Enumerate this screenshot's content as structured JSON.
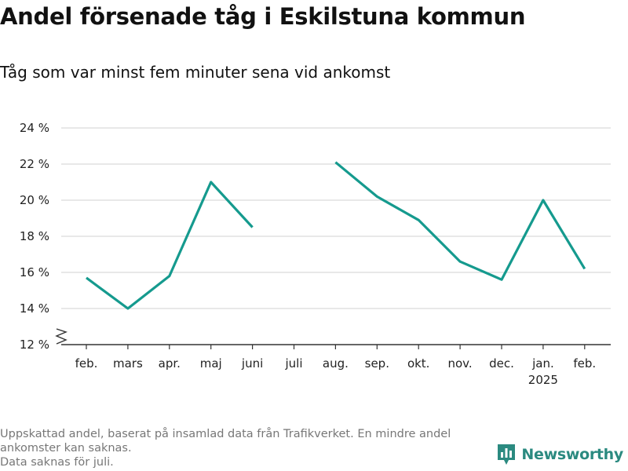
{
  "title": "Andel försenade tåg i Eskilstuna kommun",
  "subtitle": "Tåg som var minst fem minuter sena vid ankomst",
  "footnote": {
    "line1": "Uppskattad andel, baserat på insamlad data från Trafikverket. En mindre andel",
    "line2": "ankomster kan saknas.",
    "line3": "Data saknas för juli."
  },
  "brand": {
    "name": "Newsworthy",
    "icon": "newsworthy-logo-icon",
    "color": "#2b8a80"
  },
  "chart_data": {
    "type": "line",
    "categories": [
      "feb.",
      "mars",
      "apr.",
      "maj",
      "juni",
      "juli",
      "aug.",
      "sep.",
      "okt.",
      "nov.",
      "dec.",
      "jan.",
      "feb."
    ],
    "year_labels": {
      "11": "2025"
    },
    "series": [
      {
        "values": [
          15.7,
          14.0,
          15.8,
          21.0,
          18.5,
          null,
          22.1,
          20.2,
          18.9,
          16.6,
          15.6,
          20.0,
          16.2
        ],
        "color": "#159a8e"
      }
    ],
    "y_ticks": [
      12,
      14,
      16,
      18,
      20,
      22,
      24
    ],
    "y_tick_labels": [
      "12 %",
      "14 %",
      "16 %",
      "18 %",
      "20 %",
      "22 %",
      "24 %"
    ],
    "ylim": [
      12,
      24
    ],
    "y_axis_break": true,
    "grid": true,
    "xlabel": "",
    "ylabel": ""
  }
}
